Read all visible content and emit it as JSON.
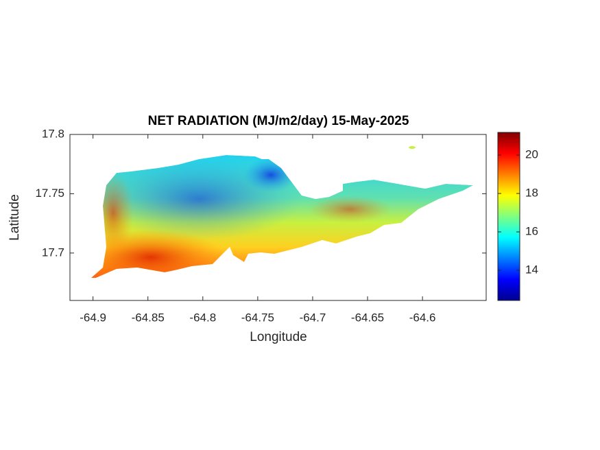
{
  "chart_data": {
    "type": "map",
    "title": "NET RADIATION (MJ/m2/day) 15-May-2025",
    "x_label": "Longitude",
    "y_label": "Latitude",
    "xlim": [
      -64.921,
      -64.542
    ],
    "xticks": [
      -64.9,
      -64.85,
      -64.8,
      -64.75,
      -64.7,
      -64.65,
      -64.6
    ],
    "ylim": [
      17.66,
      17.8
    ],
    "yticks": [
      17.7,
      17.75,
      17.8
    ],
    "colorbar": {
      "clim": [
        12.43,
        21.18
      ],
      "ticks": [
        14,
        16,
        18,
        20
      ],
      "colormap": "jet"
    }
  }
}
